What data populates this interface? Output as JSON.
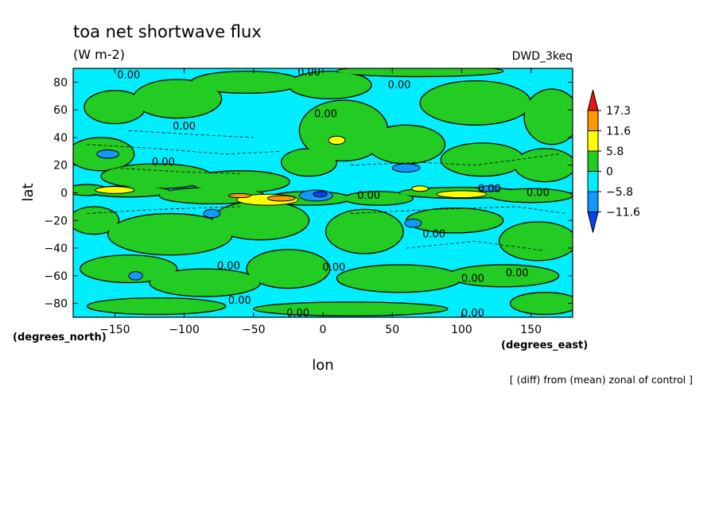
{
  "chart_data": {
    "type": "heatmap",
    "title": "toa net shortwave flux",
    "subtitle": "(W m-2)",
    "model_label": "DWD_3keq",
    "xlabel": "lon",
    "ylabel": "lat",
    "x_units": "(degrees_east)",
    "y_units": "(degrees_north)",
    "footnote": "[ (diff) from (mean) zonal of control ]",
    "xlim": [
      -180,
      180
    ],
    "ylim": [
      -90,
      90
    ],
    "x_ticks": [
      -150,
      -100,
      -50,
      0,
      50,
      100,
      150
    ],
    "y_ticks": [
      -80,
      -60,
      -40,
      -20,
      0,
      20,
      40,
      60,
      80
    ],
    "colorbar": {
      "levels": [
        "17.3",
        "11.6",
        "5.8",
        "0",
        "-5.8",
        "-11.6"
      ],
      "colors": {
        "above_17.3": "#ee1111",
        "11.6_to_17.3": "#ff9900",
        "5.8_to_11.6": "#ffff00",
        "0_to_5.8": "#22cc22",
        "-5.8_to_0": "#00eeff",
        "-11.6_to_-5.8": "#1199ff",
        "below_-11.6": "#0044ee"
      }
    },
    "contour_labels": [
      {
        "text": "0.00",
        "lon": -140,
        "lat": 85
      },
      {
        "text": "0.00",
        "lon": -10,
        "lat": 87
      },
      {
        "text": "0.00",
        "lon": 55,
        "lat": 78
      },
      {
        "text": "0.00",
        "lon": -100,
        "lat": 48
      },
      {
        "text": "0.00",
        "lon": 2,
        "lat": 57
      },
      {
        "text": "0.00",
        "lon": -115,
        "lat": 22
      },
      {
        "text": "0.00",
        "lon": 33,
        "lat": -2
      },
      {
        "text": "0.00",
        "lon": 120,
        "lat": 3
      },
      {
        "text": "0.00",
        "lon": 155,
        "lat": 0
      },
      {
        "text": "0.00",
        "lon": 80,
        "lat": -30
      },
      {
        "text": "0.00",
        "lon": -68,
        "lat": -53
      },
      {
        "text": "0.00",
        "lon": 8,
        "lat": -54
      },
      {
        "text": "0.00",
        "lon": 108,
        "lat": -62
      },
      {
        "text": "0.00",
        "lon": 140,
        "lat": -58
      },
      {
        "text": "0.00",
        "lon": -60,
        "lat": -78
      },
      {
        "text": "0.00",
        "lon": -18,
        "lat": -87
      },
      {
        "text": "0.00",
        "lon": 108,
        "lat": -87
      }
    ]
  }
}
